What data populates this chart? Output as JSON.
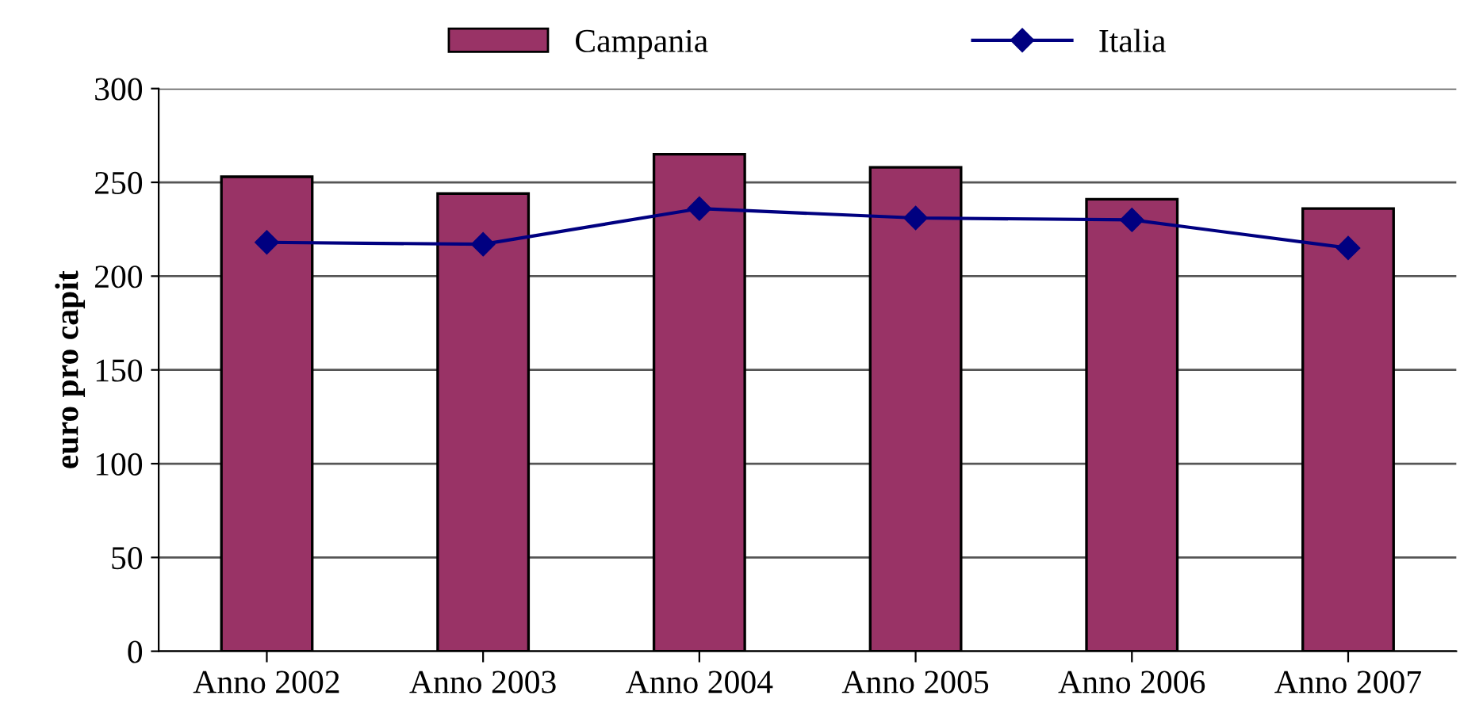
{
  "chart_data": {
    "type": "bar",
    "ylabel": "euro pro capit",
    "categories": [
      "Anno 2002",
      "Anno 2003",
      "Anno 2004",
      "Anno 2005",
      "Anno 2006",
      "Anno 2007"
    ],
    "series": [
      {
        "name": "Campania",
        "color": "#993366",
        "values": [
          253,
          244,
          265,
          258,
          241,
          236
        ]
      },
      {
        "name": "Italia",
        "type": "line",
        "color": "#000080",
        "marker": "diamond",
        "values": [
          218,
          217,
          236,
          231,
          230,
          215
        ]
      }
    ],
    "ylim": [
      0,
      300
    ],
    "yticks": [
      0,
      50,
      100,
      150,
      200,
      250,
      300
    ],
    "grid": "y",
    "legend": "top"
  }
}
